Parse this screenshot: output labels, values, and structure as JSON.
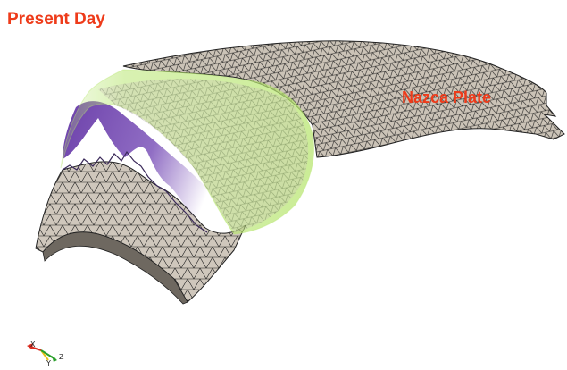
{
  "title": "Present Day",
  "plate_label": "Nazca Plate",
  "axes": {
    "x_label": "X",
    "y_label": "Y",
    "z_label": "Z"
  },
  "colors": {
    "label": "#ee3b1a",
    "mesh_fill": "#cfc7bc",
    "mesh_line": "#222222",
    "surface_green": "#b9e673",
    "surface_purple": "#5b2aa0",
    "axis_x": "#d92b1f",
    "axis_y": "#e8c21a",
    "axis_z": "#2aa02a"
  }
}
